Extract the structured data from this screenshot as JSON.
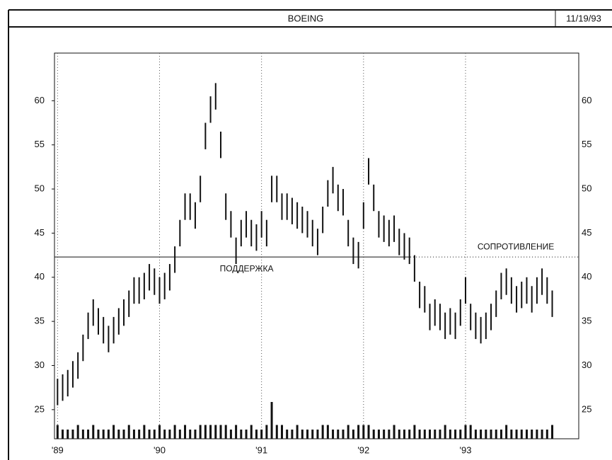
{
  "chart_data": {
    "type": "hilo",
    "title": "BOEING",
    "date": "11/19/93",
    "xlim": [
      1988.97,
      1994.11
    ],
    "xticks": [
      {
        "value": 1989,
        "label": "'89"
      },
      {
        "value": 1990,
        "label": "'90"
      },
      {
        "value": 1991,
        "label": "'91"
      },
      {
        "value": 1992,
        "label": "'92"
      },
      {
        "value": 1993,
        "label": "'93"
      }
    ],
    "ylim": [
      21.7,
      65.4
    ],
    "yticks": [
      25,
      30,
      35,
      40,
      45,
      50,
      55,
      60
    ],
    "grid": true,
    "color": "#111111",
    "levels": [
      {
        "label": "ПОДДЕРЖКА",
        "value": 42.3,
        "x_start": 1988.97,
        "x_end": 1992.46,
        "style": "solid"
      },
      {
        "label": "СОПРОТИВЛЕНИЕ",
        "value": 42.3,
        "x_start": 1992.46,
        "x_end": 1994.11,
        "style": "dotted"
      }
    ],
    "x": [
      1989.0,
      1989.05,
      1989.1,
      1989.15,
      1989.2,
      1989.25,
      1989.3,
      1989.35,
      1989.4,
      1989.45,
      1989.5,
      1989.55,
      1989.6,
      1989.65,
      1989.7,
      1989.75,
      1989.8,
      1989.85,
      1989.9,
      1989.95,
      1990.0,
      1990.05,
      1990.1,
      1990.15,
      1990.2,
      1990.25,
      1990.3,
      1990.35,
      1990.4,
      1990.45,
      1990.5,
      1990.55,
      1990.6,
      1990.65,
      1990.7,
      1990.75,
      1990.8,
      1990.85,
      1990.9,
      1990.95,
      1991.0,
      1991.05,
      1991.1,
      1991.15,
      1991.2,
      1991.25,
      1991.3,
      1991.35,
      1991.4,
      1991.45,
      1991.5,
      1991.55,
      1991.6,
      1991.65,
      1991.7,
      1991.75,
      1991.8,
      1991.85,
      1991.9,
      1991.95,
      1992.0,
      1992.05,
      1992.1,
      1992.15,
      1992.2,
      1992.25,
      1992.3,
      1992.35,
      1992.4,
      1992.45,
      1992.5,
      1992.55,
      1992.6,
      1992.65,
      1992.7,
      1992.75,
      1992.8,
      1992.85,
      1992.9,
      1992.95,
      1993.0,
      1993.05,
      1993.1,
      1993.15,
      1993.2,
      1993.25,
      1993.3,
      1993.35,
      1993.4,
      1993.45,
      1993.5,
      1993.55,
      1993.6,
      1993.65,
      1993.7,
      1993.75,
      1993.8,
      1993.85
    ],
    "high": [
      28.5,
      29,
      29.5,
      30.5,
      31.5,
      33.5,
      36,
      37.5,
      36.5,
      35.5,
      34.5,
      35.5,
      36.5,
      37.5,
      38.5,
      40,
      40,
      40.5,
      41.5,
      41,
      40,
      40.5,
      41.5,
      43.5,
      46.5,
      49.5,
      49.5,
      48.5,
      51.5,
      57.5,
      60.5,
      62,
      56.5,
      49.5,
      47.5,
      44.5,
      46.5,
      47.5,
      46.5,
      46,
      47.5,
      46.5,
      51.5,
      51.5,
      49.5,
      49.5,
      49,
      48.5,
      48,
      47.5,
      46.5,
      45.5,
      48,
      51,
      52.5,
      50.5,
      50,
      46.5,
      44.5,
      44,
      48.5,
      53.5,
      50.5,
      47.5,
      47,
      46.5,
      47,
      45.5,
      45,
      44.5,
      42.5,
      39.5,
      39,
      37,
      37.5,
      37,
      36,
      36.5,
      36,
      37.5,
      40,
      37,
      36,
      35.5,
      36,
      37,
      38.5,
      40.5,
      41,
      40,
      39,
      39.5,
      40,
      39,
      40,
      41,
      40,
      38.5
    ],
    "low": [
      25.5,
      26,
      26.5,
      27.5,
      28.5,
      30.5,
      33,
      34.5,
      33.5,
      32.5,
      31.5,
      32.5,
      33.5,
      34.5,
      35.5,
      37,
      37,
      37.5,
      38.5,
      38,
      37,
      37.5,
      38.5,
      40.5,
      43.5,
      46.5,
      46.5,
      45.5,
      48.5,
      54.5,
      57.5,
      59,
      53.5,
      46.5,
      44.5,
      41.5,
      43.5,
      44.5,
      43.5,
      43,
      44.5,
      43.5,
      48.5,
      48.5,
      46.5,
      46.5,
      46,
      45.5,
      45,
      44.5,
      43.5,
      42.5,
      45,
      48,
      49.5,
      47.5,
      47,
      43.5,
      41.5,
      41,
      45.5,
      50.5,
      47.5,
      44.5,
      44,
      43.5,
      44,
      42.5,
      42,
      41.5,
      39.5,
      36.5,
      36,
      34,
      34.5,
      34,
      33,
      33.5,
      33,
      34.5,
      37,
      34,
      33,
      32.5,
      33,
      34,
      35.5,
      37.5,
      38,
      37,
      36,
      36.5,
      37,
      36,
      37,
      38,
      37,
      35.5
    ],
    "volume": [
      3,
      2,
      2,
      2,
      3,
      2,
      2,
      3,
      2,
      2,
      2,
      3,
      2,
      2,
      3,
      2,
      2,
      3,
      2,
      2,
      3,
      2,
      2,
      3,
      2,
      3,
      2,
      2,
      3,
      3,
      3,
      3,
      3,
      3,
      2,
      3,
      2,
      2,
      3,
      2,
      2,
      3,
      8,
      3,
      3,
      2,
      2,
      3,
      2,
      2,
      2,
      2,
      3,
      3,
      2,
      2,
      2,
      3,
      2,
      3,
      3,
      3,
      2,
      2,
      2,
      2,
      3,
      2,
      2,
      2,
      3,
      2,
      2,
      2,
      2,
      2,
      3,
      2,
      2,
      2,
      3,
      3,
      2,
      2,
      2,
      2,
      2,
      2,
      3,
      2,
      2,
      2,
      2,
      2,
      2,
      2,
      2,
      3
    ]
  }
}
